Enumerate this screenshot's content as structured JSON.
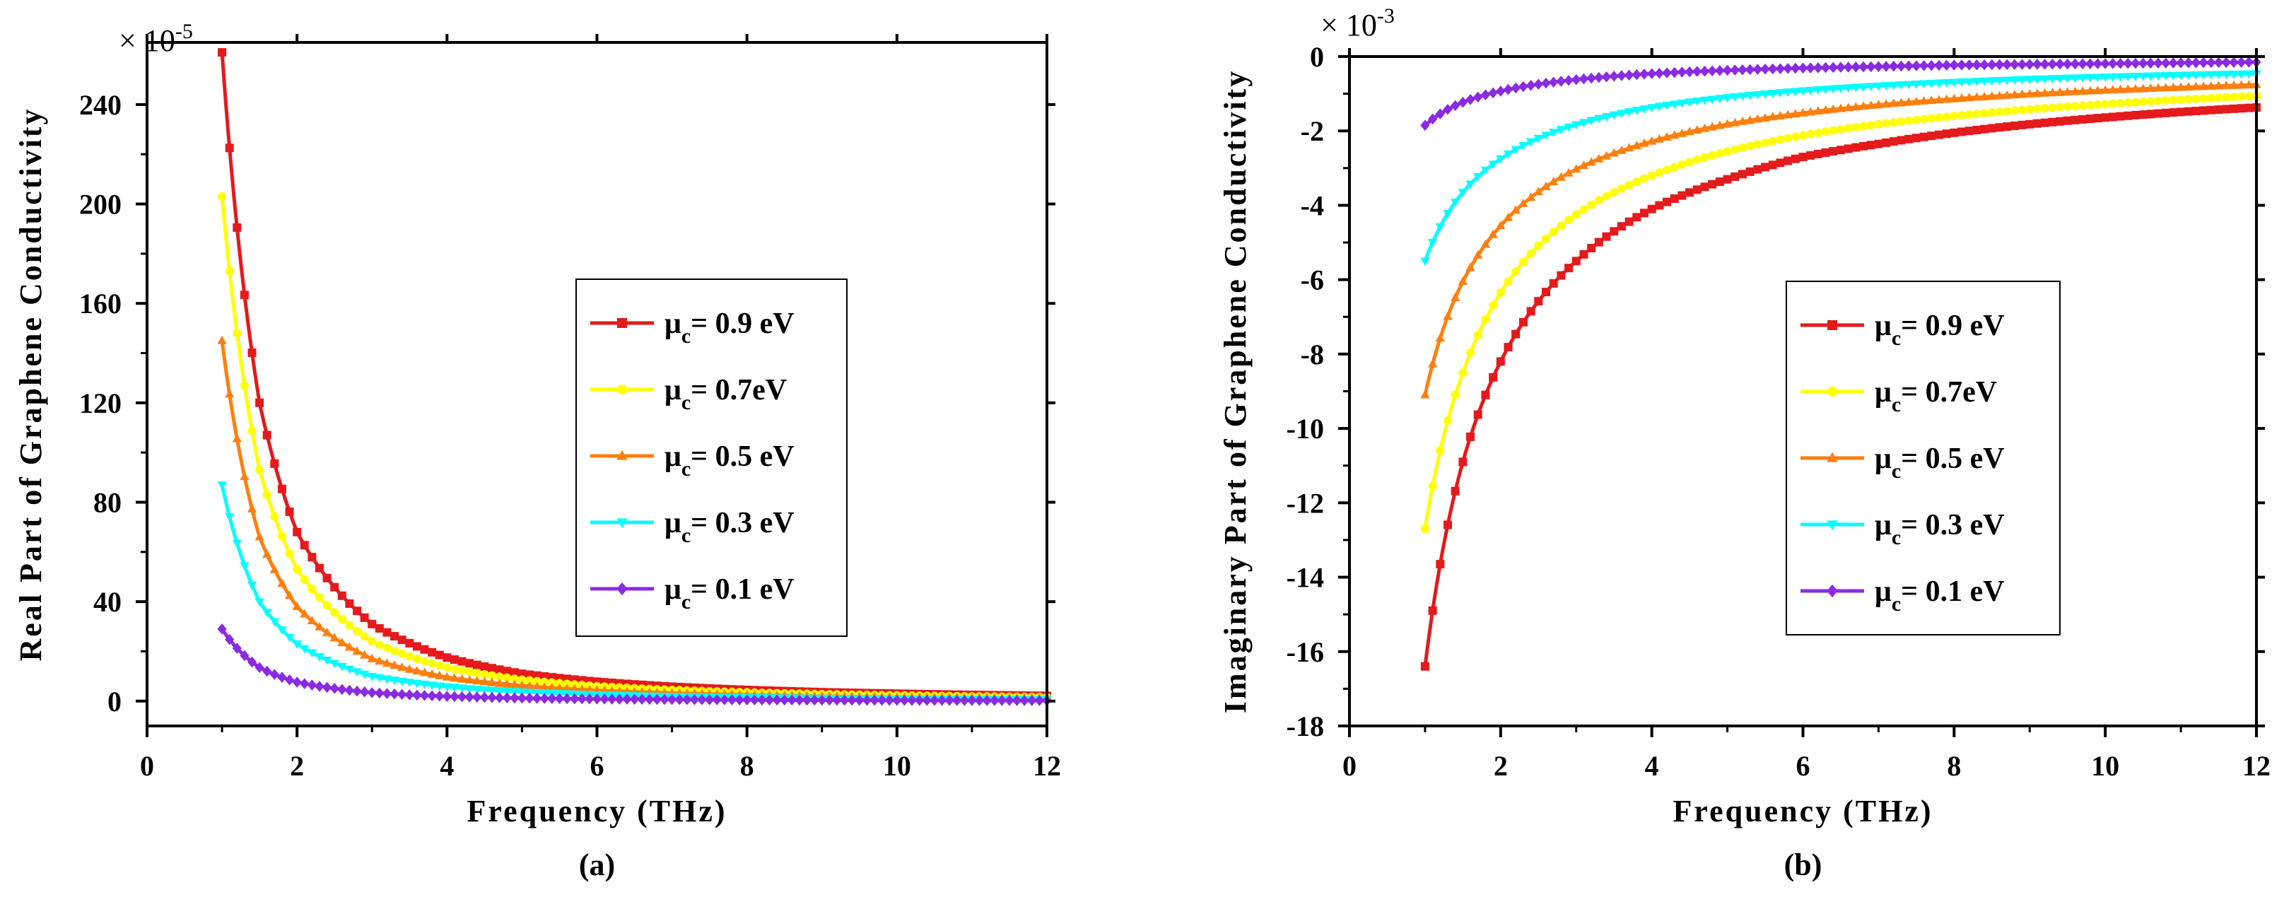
{
  "chart_data": [
    {
      "type": "line",
      "panel_label": "(a)",
      "xlabel": "Frequency (THz)",
      "ylabel": "Real Part of Graphene Conductivity",
      "y_multiplier": {
        "base": "× 10",
        "exponent": "-5"
      },
      "xlim": [
        0,
        12
      ],
      "ylim": [
        -10,
        265
      ],
      "x_ticks": [
        0,
        2,
        4,
        6,
        8,
        10,
        12
      ],
      "y_ticks": [
        0,
        40,
        80,
        120,
        160,
        200,
        240
      ],
      "x_tick_labels": [
        "0",
        "2",
        "4",
        "6",
        "8",
        "10",
        "12"
      ],
      "y_tick_labels": [
        "0",
        "40",
        "80",
        "120",
        "160",
        "200",
        "240"
      ],
      "legend_position": "center-right",
      "x": [
        1,
        1.5,
        2,
        3,
        4,
        5,
        6,
        7,
        8,
        9,
        10,
        11,
        12
      ],
      "series": [
        {
          "name": "0.9 eV",
          "legend": {
            "mu": "μ",
            "sub": "c",
            "text": "= 0.9 eV"
          },
          "color": "#e41a1c",
          "marker": "square",
          "values": [
            261,
            120,
            68,
            31,
            17.5,
            11,
            7.8,
            5.8,
            4.5,
            3.6,
            3.0,
            2.5,
            2.1
          ]
        },
        {
          "name": "0.7eV",
          "legend": {
            "mu": "μ",
            "sub": "c",
            "text": "= 0.7eV"
          },
          "color": "#ffff00",
          "marker": "circle",
          "values": [
            203,
            93,
            53,
            24,
            13.5,
            8.6,
            6.0,
            4.5,
            3.5,
            2.8,
            2.3,
            1.9,
            1.6
          ]
        },
        {
          "name": "0.5 eV",
          "legend": {
            "mu": "μ",
            "sub": "c",
            "text": "= 0.5 eV"
          },
          "color": "#ff7f0e",
          "marker": "triangle-up",
          "values": [
            145,
            66,
            38,
            17,
            9.6,
            6.2,
            4.3,
            3.2,
            2.5,
            2.0,
            1.6,
            1.3,
            1.1
          ]
        },
        {
          "name": "0.3 eV",
          "legend": {
            "mu": "μ",
            "sub": "c",
            "text": "= 0.3 eV"
          },
          "color": "#00ffff",
          "marker": "triangle-down",
          "values": [
            87,
            40,
            23,
            10,
            5.8,
            3.7,
            2.6,
            1.9,
            1.5,
            1.2,
            1.0,
            0.8,
            0.7
          ]
        },
        {
          "name": "0.1 eV",
          "legend": {
            "mu": "μ",
            "sub": "c",
            "text": "= 0.1 eV"
          },
          "color": "#8a2be2",
          "marker": "diamond",
          "values": [
            29,
            13.5,
            7.6,
            3.4,
            1.9,
            1.2,
            0.85,
            0.63,
            0.48,
            0.38,
            0.31,
            0.26,
            0.22
          ]
        }
      ]
    },
    {
      "type": "line",
      "panel_label": "(b)",
      "xlabel": "Frequency (THz)",
      "ylabel": "Imaginary Part of Graphene Conductivity",
      "y_multiplier": {
        "base": "× 10",
        "exponent": "-3"
      },
      "xlim": [
        0,
        12
      ],
      "ylim": [
        -18,
        0
      ],
      "x_ticks": [
        0,
        2,
        4,
        6,
        8,
        10,
        12
      ],
      "y_ticks": [
        0,
        -2,
        -4,
        -6,
        -8,
        -10,
        -12,
        -14,
        -16,
        -18
      ],
      "x_tick_labels": [
        "0",
        "2",
        "4",
        "6",
        "8",
        "10",
        "12"
      ],
      "y_tick_labels": [
        "0",
        "-2",
        "-4",
        "-6",
        "-8",
        "-10",
        "-12",
        "-14",
        "-16",
        "-18"
      ],
      "legend_position": "center-right",
      "x": [
        1,
        1.5,
        2,
        3,
        4,
        5,
        6,
        7,
        8,
        9,
        10,
        11,
        12
      ],
      "series": [
        {
          "name": "0.9 eV",
          "legend": {
            "mu": "μ",
            "sub": "c",
            "text": "= 0.9 eV"
          },
          "color": "#e41a1c",
          "marker": "square",
          "values": [
            -16.4,
            -10.9,
            -8.2,
            -5.5,
            -4.1,
            -3.3,
            -2.7,
            -2.35,
            -2.05,
            -1.82,
            -1.64,
            -1.49,
            -1.37
          ]
        },
        {
          "name": "0.7eV",
          "legend": {
            "mu": "μ",
            "sub": "c",
            "text": "= 0.7eV"
          },
          "color": "#ffff00",
          "marker": "circle",
          "values": [
            -12.7,
            -8.5,
            -6.35,
            -4.25,
            -3.2,
            -2.55,
            -2.12,
            -1.82,
            -1.6,
            -1.42,
            -1.28,
            -1.16,
            -1.06
          ]
        },
        {
          "name": "0.5 eV",
          "legend": {
            "mu": "μ",
            "sub": "c",
            "text": "= 0.5 eV"
          },
          "color": "#ff7f0e",
          "marker": "triangle-up",
          "values": [
            -9.1,
            -6.05,
            -4.55,
            -3.03,
            -2.28,
            -1.82,
            -1.52,
            -1.3,
            -1.14,
            -1.01,
            -0.91,
            -0.83,
            -0.76
          ]
        },
        {
          "name": "0.3 eV",
          "legend": {
            "mu": "μ",
            "sub": "c",
            "text": "= 0.3 eV"
          },
          "color": "#00ffff",
          "marker": "triangle-down",
          "values": [
            -5.5,
            -3.65,
            -2.75,
            -1.83,
            -1.37,
            -1.1,
            -0.92,
            -0.79,
            -0.69,
            -0.61,
            -0.55,
            -0.5,
            -0.46
          ]
        },
        {
          "name": "0.1 eV",
          "legend": {
            "mu": "μ",
            "sub": "c",
            "text": "= 0.1 eV"
          },
          "color": "#8a2be2",
          "marker": "diamond",
          "values": [
            -1.85,
            -1.23,
            -0.93,
            -0.62,
            -0.46,
            -0.37,
            -0.31,
            -0.27,
            -0.23,
            -0.21,
            -0.19,
            -0.17,
            -0.15
          ]
        }
      ]
    }
  ]
}
